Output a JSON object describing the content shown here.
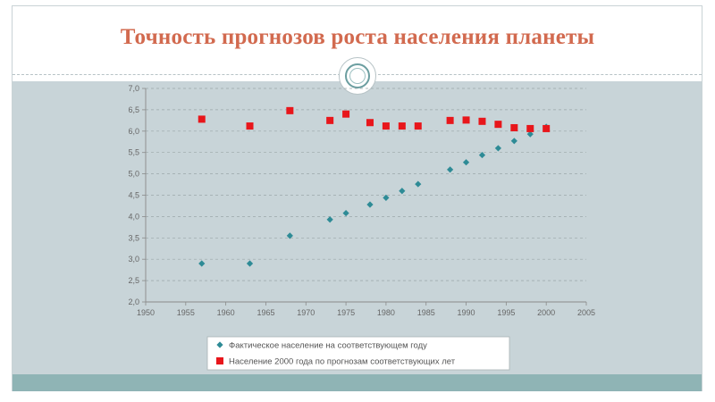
{
  "slide": {
    "title": "Точность прогнозов роста населения планеты",
    "colors": {
      "title": "#d26a4f",
      "panel": "#c8d4d8",
      "bar": "#8fb4b5",
      "ornament": "#6b9ea0"
    }
  },
  "chart_data": {
    "type": "scatter",
    "xlim": [
      1950,
      2005
    ],
    "ylim": [
      2.0,
      7.0
    ],
    "x_ticks": [
      1950,
      1955,
      1960,
      1965,
      1970,
      1975,
      1980,
      1985,
      1990,
      1995,
      2000,
      2005
    ],
    "y_ticks": [
      "2,0",
      "2,5",
      "3,0",
      "3,5",
      "4,0",
      "4,5",
      "5,0",
      "5,5",
      "6,0",
      "6,5",
      "7,0"
    ],
    "grid": "horizontal-dashed",
    "legend_placement": "bottom",
    "series": [
      {
        "name": "Фактическое население на соответствующем году",
        "marker": "diamond",
        "color": "#2e8b96",
        "points": [
          [
            1957,
            2.9
          ],
          [
            1963,
            2.9
          ],
          [
            1968,
            3.55
          ],
          [
            1973,
            3.93
          ],
          [
            1975,
            4.08
          ],
          [
            1978,
            4.28
          ],
          [
            1980,
            4.44
          ],
          [
            1982,
            4.6
          ],
          [
            1984,
            4.76
          ],
          [
            1988,
            5.1
          ],
          [
            1990,
            5.27
          ],
          [
            1992,
            5.44
          ],
          [
            1994,
            5.6
          ],
          [
            1996,
            5.77
          ],
          [
            1998,
            5.93
          ],
          [
            2000,
            6.1
          ]
        ]
      },
      {
        "name": "Население 2000 года по прогнозам соответствующих лет",
        "marker": "square",
        "color": "#e8161b",
        "points": [
          [
            1957,
            6.28
          ],
          [
            1963,
            6.12
          ],
          [
            1968,
            6.48
          ],
          [
            1973,
            6.25
          ],
          [
            1975,
            6.4
          ],
          [
            1978,
            6.2
          ],
          [
            1980,
            6.12
          ],
          [
            1982,
            6.12
          ],
          [
            1984,
            6.12
          ],
          [
            1988,
            6.25
          ],
          [
            1990,
            6.26
          ],
          [
            1992,
            6.23
          ],
          [
            1994,
            6.16
          ],
          [
            1996,
            6.08
          ],
          [
            1998,
            6.06
          ],
          [
            2000,
            6.06
          ]
        ]
      }
    ]
  }
}
